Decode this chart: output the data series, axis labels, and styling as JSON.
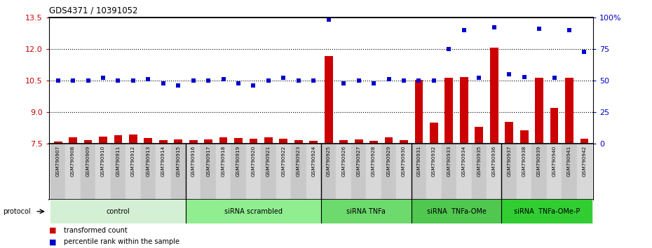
{
  "title": "GDS4371 / 10391052",
  "samples": [
    "GSM790907",
    "GSM790908",
    "GSM790909",
    "GSM790910",
    "GSM790911",
    "GSM790912",
    "GSM790913",
    "GSM790914",
    "GSM790915",
    "GSM790916",
    "GSM790917",
    "GSM790918",
    "GSM790919",
    "GSM790920",
    "GSM790921",
    "GSM790922",
    "GSM790923",
    "GSM790924",
    "GSM790925",
    "GSM790926",
    "GSM790927",
    "GSM790928",
    "GSM790929",
    "GSM790930",
    "GSM790931",
    "GSM790932",
    "GSM790933",
    "GSM790934",
    "GSM790935",
    "GSM790936",
    "GSM790937",
    "GSM790938",
    "GSM790939",
    "GSM790940",
    "GSM790941",
    "GSM790942"
  ],
  "red_bars": [
    7.62,
    7.82,
    7.68,
    7.85,
    7.92,
    7.93,
    7.78,
    7.68,
    7.72,
    7.68,
    7.72,
    7.82,
    7.78,
    7.75,
    7.82,
    7.75,
    7.68,
    7.65,
    11.65,
    7.68,
    7.72,
    7.65,
    7.82,
    7.68,
    10.55,
    8.5,
    10.65,
    10.68,
    8.3,
    12.05,
    8.55,
    8.15,
    10.65,
    9.2,
    10.65,
    7.75
  ],
  "blue_percentiles": [
    50,
    50,
    50,
    52,
    50,
    50,
    51,
    48,
    46,
    50,
    50,
    51,
    48,
    46,
    50,
    52,
    50,
    50,
    98,
    48,
    50,
    48,
    51,
    50,
    50,
    50,
    75,
    90,
    52,
    92,
    55,
    53,
    91,
    52,
    90,
    73
  ],
  "groups": [
    {
      "label": "control",
      "start": 0,
      "end": 8,
      "color": "#d4f0d4"
    },
    {
      "label": "siRNA scrambled",
      "start": 9,
      "end": 17,
      "color": "#90ee90"
    },
    {
      "label": "siRNA TNFa",
      "start": 18,
      "end": 23,
      "color": "#6dda6d"
    },
    {
      "label": "siRNA  TNFa-OMe",
      "start": 24,
      "end": 29,
      "color": "#50c850"
    },
    {
      "label": "siRNA  TNFa-OMe-P",
      "start": 30,
      "end": 35,
      "color": "#32cd32"
    }
  ],
  "ylim_left": [
    7.5,
    13.5
  ],
  "yticks_left": [
    7.5,
    9.0,
    10.5,
    12.0,
    13.5
  ],
  "ylim_right": [
    0,
    100
  ],
  "yticks_right": [
    0,
    25,
    50,
    75,
    100
  ],
  "bar_color": "#cc0000",
  "square_color": "#0000cc",
  "bar_baseline": 7.5,
  "col_colors": [
    "#c8c8c8",
    "#d8d8d8"
  ]
}
